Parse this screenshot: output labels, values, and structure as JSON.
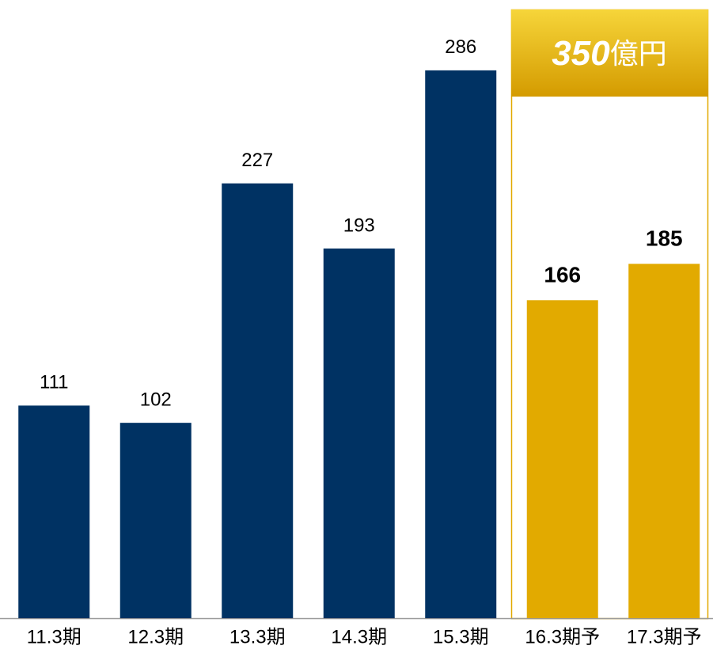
{
  "chart_data": {
    "type": "bar",
    "categories": [
      "11.3期",
      "12.3期",
      "13.3期",
      "14.3期",
      "15.3期",
      "16.3期予",
      "17.3期予"
    ],
    "values": [
      111,
      102,
      227,
      193,
      286,
      166,
      185
    ],
    "colors": [
      "#003263",
      "#003263",
      "#003263",
      "#003263",
      "#003263",
      "#e2aa00",
      "#e2aa00"
    ],
    "value_label_bold": [
      false,
      false,
      false,
      false,
      false,
      true,
      true
    ],
    "annotation": {
      "number": "350",
      "unit": "億円"
    }
  }
}
